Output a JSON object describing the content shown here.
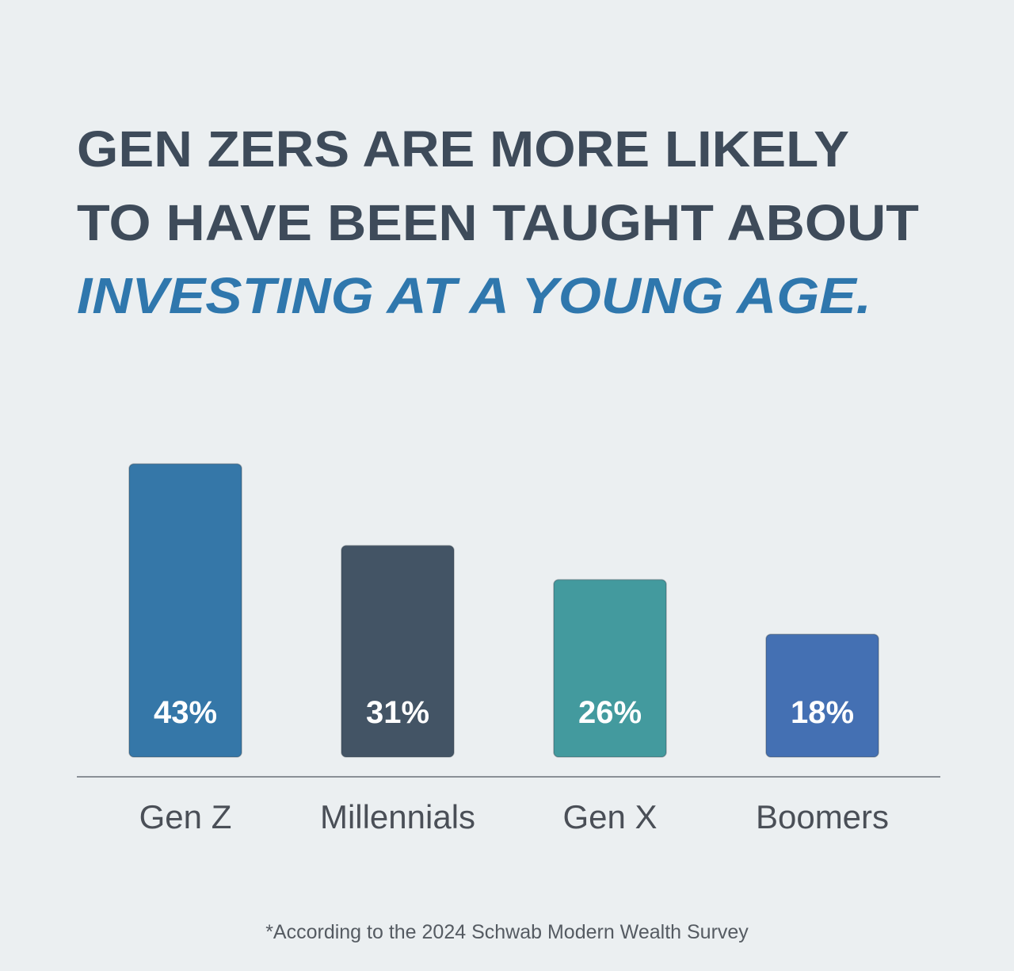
{
  "chart_data": {
    "type": "bar",
    "title_lines": [
      "GEN ZERS ARE MORE LIKELY",
      "TO HAVE BEEN TAUGHT ABOUT",
      "INVESTING AT A YOUNG AGE."
    ],
    "categories": [
      "Gen Z",
      "Millennials",
      "Gen X",
      "Boomers"
    ],
    "values": [
      43,
      31,
      26,
      18
    ],
    "value_labels": [
      "43%",
      "31%",
      "26%",
      "18%"
    ],
    "colors": [
      "#3577a8",
      "#435465",
      "#439a9e",
      "#4470b3"
    ],
    "footnote": "*According to the 2024 Schwab Modern Wealth Survey"
  }
}
